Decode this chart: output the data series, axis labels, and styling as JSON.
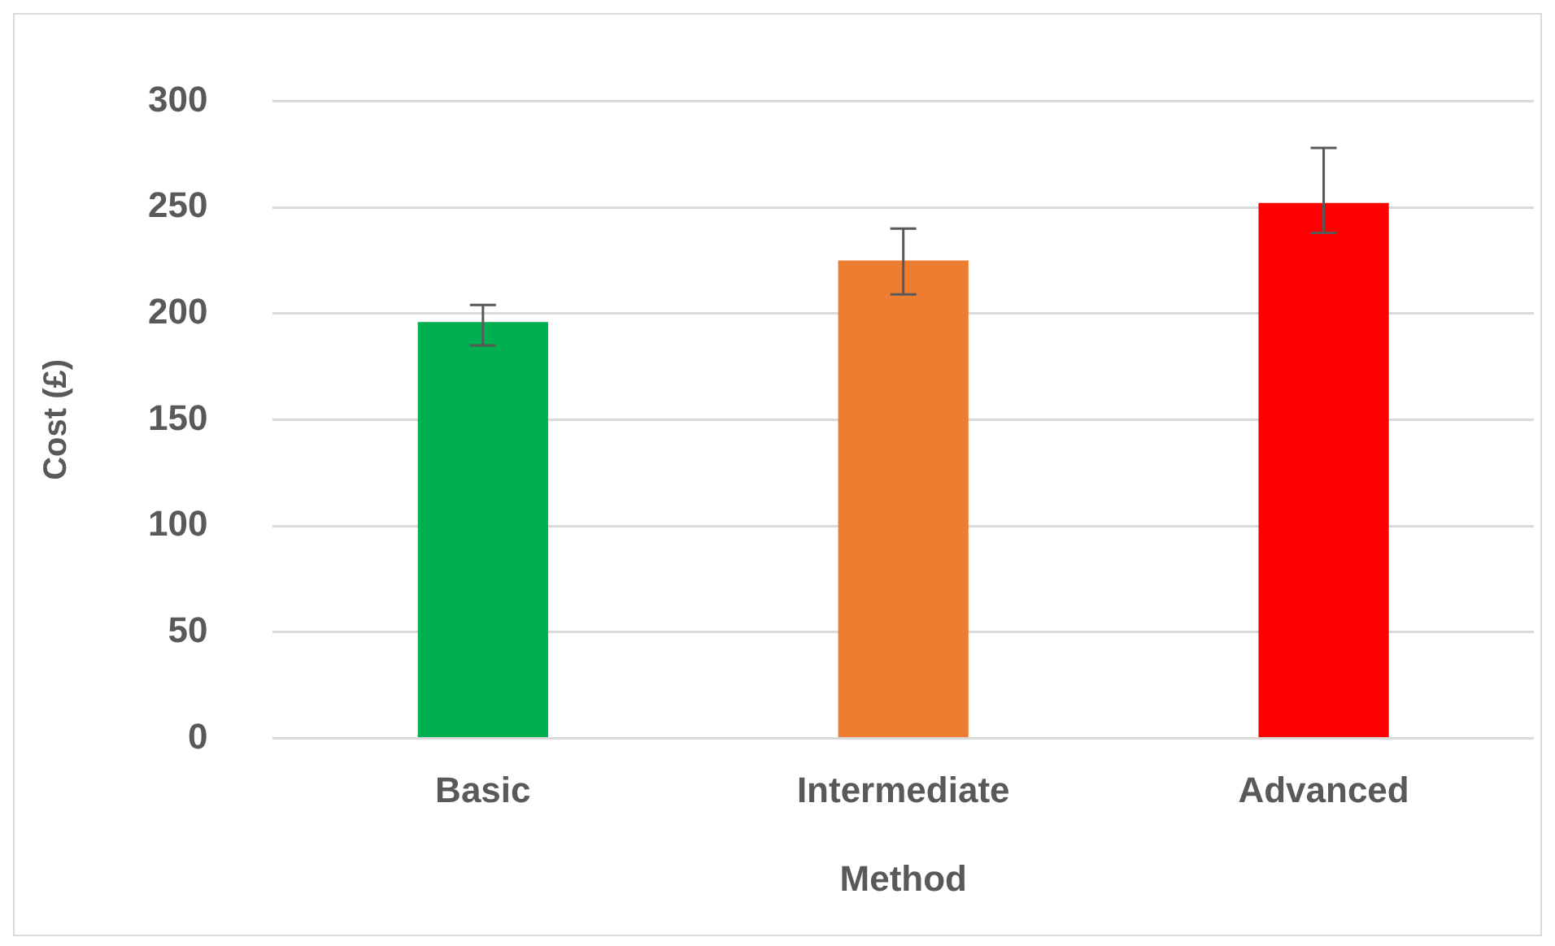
{
  "chart_data": {
    "type": "bar",
    "xlabel": "Method",
    "ylabel": "Cost (£)",
    "categories": [
      "Basic",
      "Intermediate",
      "Advanced"
    ],
    "values": [
      196,
      225,
      252
    ],
    "colors": [
      "#00b050",
      "#ed7d31",
      "#ff0000"
    ],
    "errors": [
      [
        185,
        204
      ],
      [
        209,
        240
      ],
      [
        238,
        278
      ]
    ],
    "ylim": [
      0,
      300
    ],
    "yticks": [
      0,
      50,
      100,
      150,
      200,
      250,
      300
    ],
    "grid": "y",
    "legend": false
  }
}
